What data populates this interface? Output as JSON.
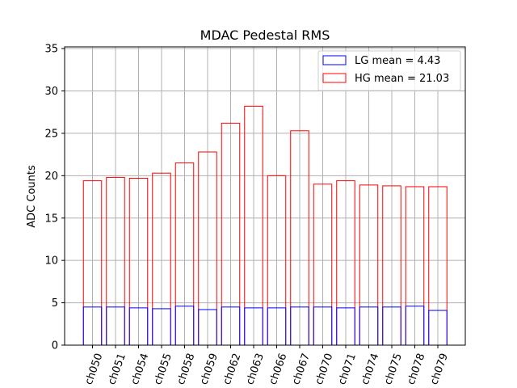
{
  "chart_data": {
    "type": "bar",
    "title": "MDAC Pedestal RMS",
    "xlabel": "",
    "ylabel": "ADC Counts",
    "ylim": [
      0,
      35.2
    ],
    "yticks": [
      0,
      5,
      10,
      15,
      20,
      25,
      30,
      35
    ],
    "grid": true,
    "legend_position": "top-right",
    "categories": [
      "ch050",
      "ch051",
      "ch054",
      "ch055",
      "ch058",
      "ch059",
      "ch062",
      "ch063",
      "ch066",
      "ch067",
      "ch070",
      "ch071",
      "ch074",
      "ch075",
      "ch078",
      "ch079"
    ],
    "series": [
      {
        "name": "HG mean = 21.03",
        "color": "#ff0000",
        "values": [
          19.4,
          19.8,
          19.7,
          20.3,
          21.5,
          22.8,
          26.2,
          28.2,
          20.0,
          25.3,
          19.0,
          19.4,
          18.9,
          18.8,
          18.7,
          18.7
        ]
      },
      {
        "name": "LG mean = 4.43",
        "color": "#0000ff",
        "values": [
          4.5,
          4.5,
          4.4,
          4.3,
          4.6,
          4.2,
          4.5,
          4.4,
          4.4,
          4.5,
          4.5,
          4.4,
          4.5,
          4.5,
          4.6,
          4.1
        ]
      }
    ]
  },
  "legend": [
    {
      "label": "LG mean = 4.43",
      "color": "#0000ff"
    },
    {
      "label": "HG mean = 21.03",
      "color": "#ff0000"
    }
  ]
}
